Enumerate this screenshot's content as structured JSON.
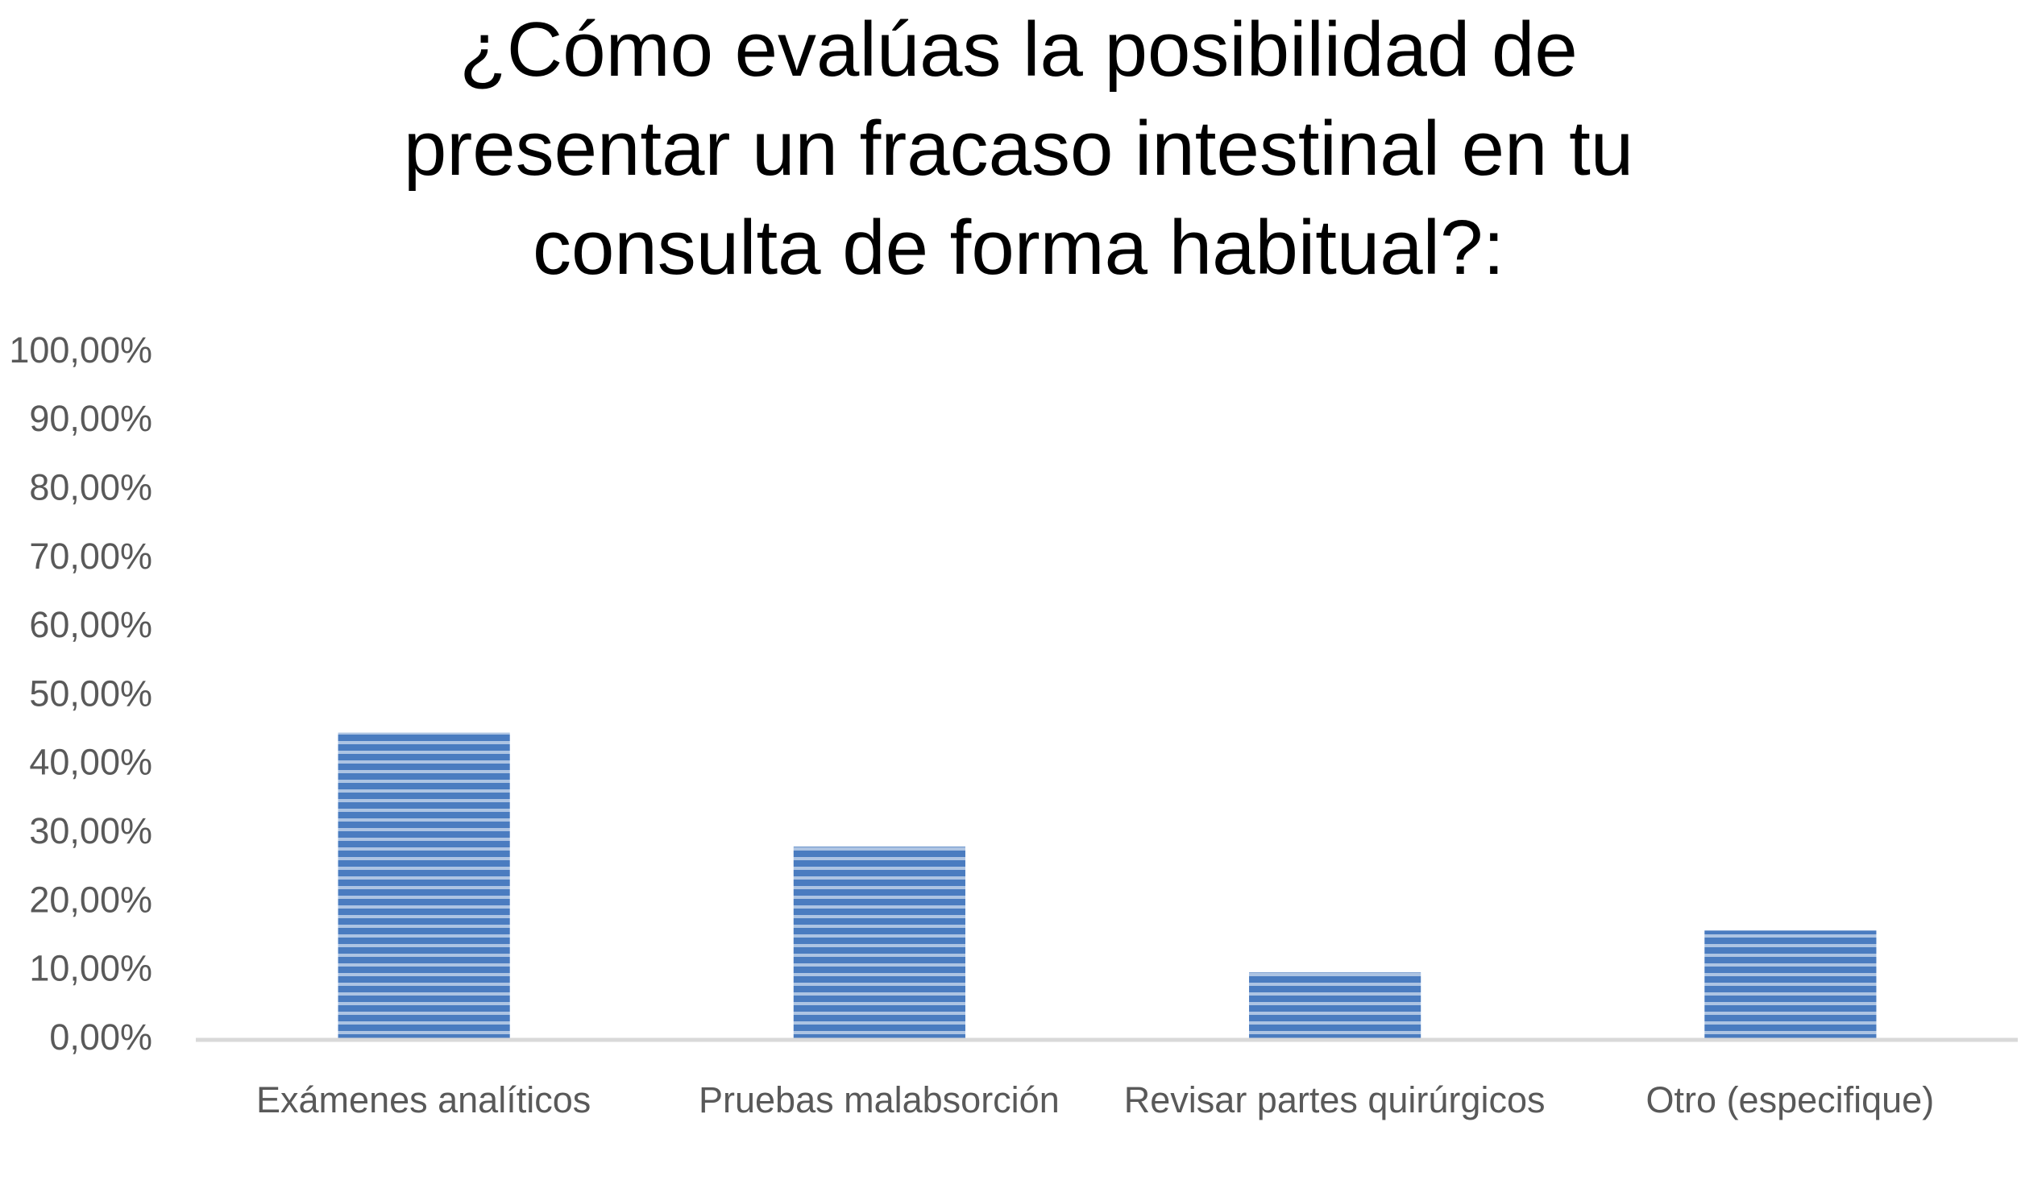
{
  "chart_data": {
    "type": "bar",
    "title": "¿Cómo evalúas la posibilidad de presentar un fracaso intestinal en tu consulta de forma habitual?:",
    "categories": [
      "Exámenes analíticos",
      "Pruebas malabsorción",
      "Revisar partes quirúrgicos",
      "Otro (especifique)"
    ],
    "values": [
      44.7,
      28.1,
      9.8,
      15.9
    ],
    "color": "#4a7cc0",
    "ylim": [
      0,
      100
    ],
    "yticks": [
      {
        "value": 0,
        "label": "0,00%"
      },
      {
        "value": 10,
        "label": "10,00%"
      },
      {
        "value": 20,
        "label": "20,00%"
      },
      {
        "value": 30,
        "label": "30,00%"
      },
      {
        "value": 40,
        "label": "40,00%"
      },
      {
        "value": 50,
        "label": "50,00%"
      },
      {
        "value": 60,
        "label": "60,00%"
      },
      {
        "value": 70,
        "label": "70,00%"
      },
      {
        "value": 80,
        "label": "80,00%"
      },
      {
        "value": 90,
        "label": "90,00%"
      },
      {
        "value": 100,
        "label": "100,00%"
      }
    ],
    "grid": false
  }
}
